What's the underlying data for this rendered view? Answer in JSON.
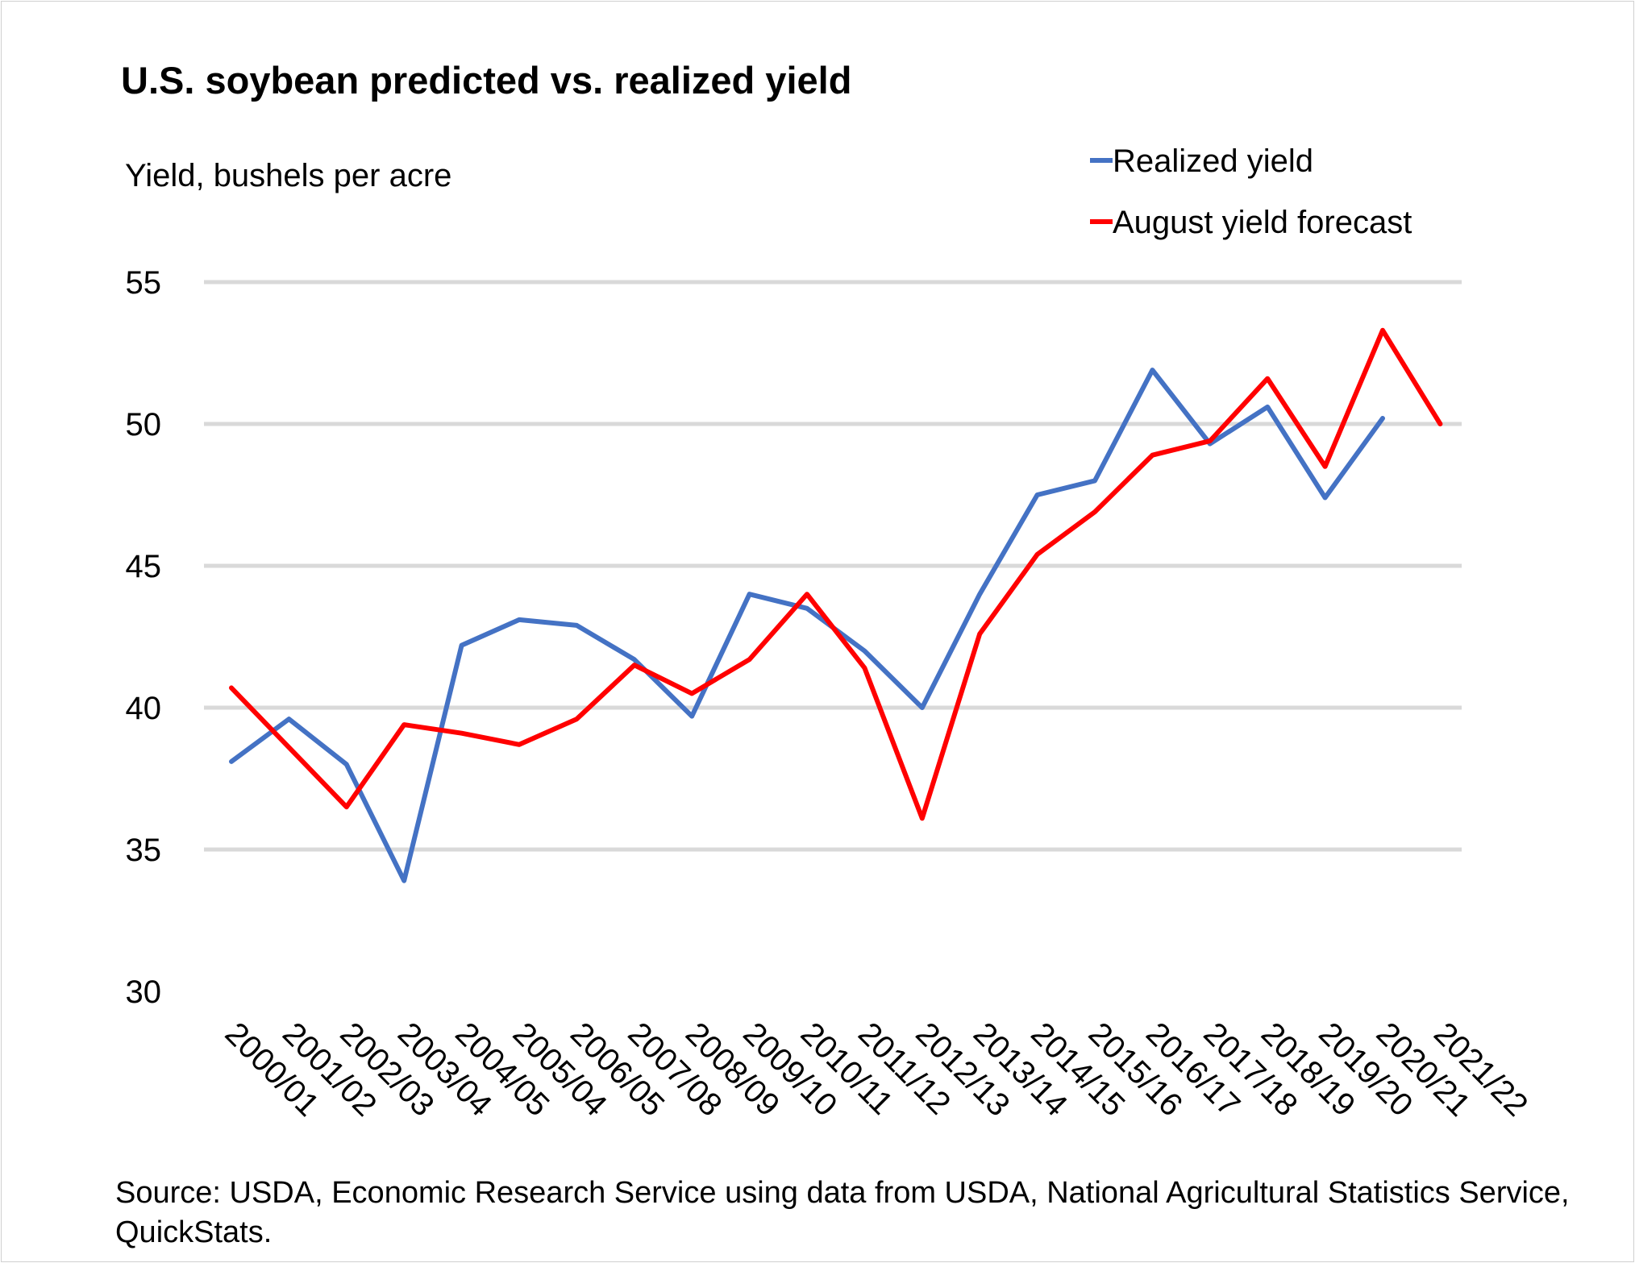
{
  "chart_data": {
    "type": "line",
    "title": "U.S. soybean predicted vs. realized yield",
    "ylabel": "Yield, bushels per acre",
    "xlabel": "",
    "categories": [
      "2000/01",
      "2001/02",
      "2002/03",
      "2003/04",
      "2004/05",
      "2005/04",
      "2006/05",
      "2007/08",
      "2008/09",
      "2009/10",
      "2010/11",
      "2011/12",
      "2012/13",
      "2013/14",
      "2014/15",
      "2015/16",
      "2016/17",
      "2017/18",
      "2018/19",
      "2019/20",
      "2020/21",
      "2021/22"
    ],
    "ylim": [
      30,
      55
    ],
    "yticks": [
      30,
      35,
      40,
      45,
      50,
      55
    ],
    "grid": true,
    "legend_position": "top-right",
    "series": [
      {
        "name": "Realized yield",
        "color": "#4472C4",
        "values": [
          38.1,
          39.6,
          38.0,
          33.9,
          42.2,
          43.1,
          42.9,
          41.7,
          39.7,
          44.0,
          43.5,
          42.0,
          40.0,
          44.0,
          47.5,
          48.0,
          51.9,
          49.3,
          50.6,
          47.4,
          50.2,
          null
        ]
      },
      {
        "name": "August yield forecast",
        "color": "#FF0000",
        "values": [
          40.7,
          38.6,
          36.5,
          39.4,
          39.1,
          38.7,
          39.6,
          41.5,
          40.5,
          41.7,
          44.0,
          41.4,
          36.1,
          42.6,
          45.4,
          46.9,
          48.9,
          49.4,
          51.6,
          48.5,
          53.3,
          50.0
        ]
      }
    ]
  },
  "source": "Source: USDA, Economic Research Service using data from USDA, National Agricultural Statistics Service, QuickStats.",
  "colors": {
    "gridline": "#D9D9D9",
    "frame": "#D0D0D0"
  }
}
